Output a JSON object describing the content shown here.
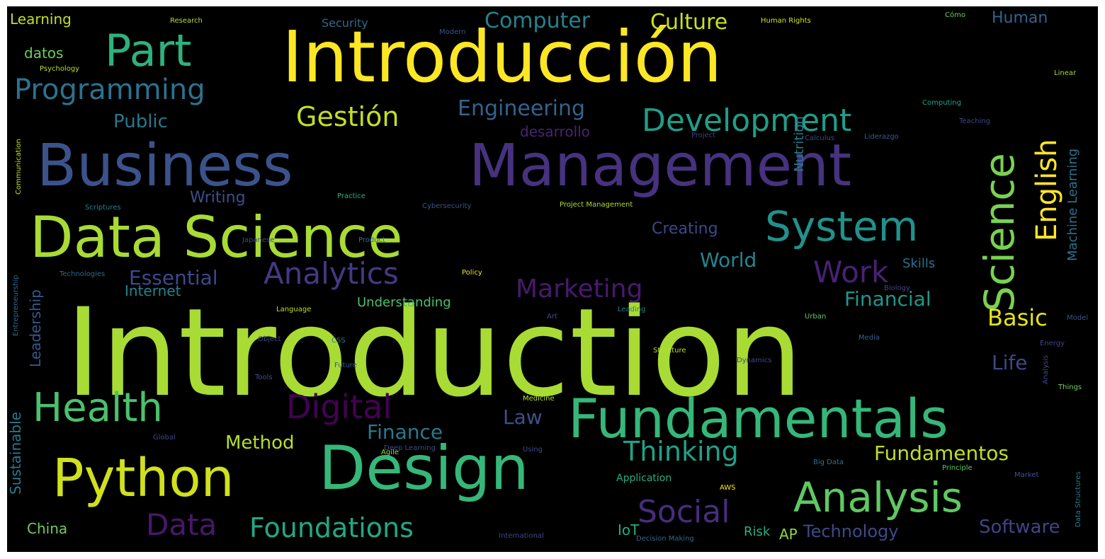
{
  "word_cloud": {
    "background": "#000000",
    "words": [
      {
        "text": "Introduction",
        "color": "#a8db34",
        "vertical": false
      },
      {
        "text": "Introducción",
        "color": "#fde725",
        "vertical": false
      },
      {
        "text": "Management",
        "color": "#46327e",
        "vertical": false
      },
      {
        "text": "Business",
        "color": "#3b528b",
        "vertical": false
      },
      {
        "text": "Data Science",
        "color": "#a8db34",
        "vertical": false
      },
      {
        "text": "Design",
        "color": "#35b779",
        "vertical": false
      },
      {
        "text": "Fundamentals",
        "color": "#35b779",
        "vertical": false
      },
      {
        "text": "Python",
        "color": "#d0e11c",
        "vertical": false
      },
      {
        "text": "Science",
        "color": "#7ad151",
        "vertical": true
      },
      {
        "text": "Part",
        "color": "#2db27d",
        "vertical": false
      },
      {
        "text": "Health",
        "color": "#4ac16d",
        "vertical": false
      },
      {
        "text": "Analysis",
        "color": "#5ec962",
        "vertical": false
      },
      {
        "text": "System",
        "color": "#21918c",
        "vertical": false
      },
      {
        "text": "Development",
        "color": "#1f9e89",
        "vertical": false
      },
      {
        "text": "English",
        "color": "#fde725",
        "vertical": true
      },
      {
        "text": "Programming",
        "color": "#2c728e",
        "vertical": false
      },
      {
        "text": "Digital",
        "color": "#440154",
        "vertical": false
      },
      {
        "text": "Social",
        "color": "#472d7b",
        "vertical": false
      },
      {
        "text": "Analytics",
        "color": "#443983",
        "vertical": false
      },
      {
        "text": "Work",
        "color": "#482173",
        "vertical": false
      },
      {
        "text": "Foundations",
        "color": "#22a884",
        "vertical": false
      },
      {
        "text": "Gestión",
        "color": "#c2df23",
        "vertical": false
      },
      {
        "text": "Data",
        "color": "#48186a",
        "vertical": false
      },
      {
        "text": "Thinking",
        "color": "#1fa188",
        "vertical": false
      },
      {
        "text": "Marketing",
        "color": "#481a6c",
        "vertical": false
      },
      {
        "text": "Engineering",
        "color": "#33638d",
        "vertical": false
      },
      {
        "text": "Fundamentos",
        "color": "#c2df23",
        "vertical": false
      },
      {
        "text": "Basic",
        "color": "#e5e419",
        "vertical": false
      },
      {
        "text": "Essential",
        "color": "#3e4989",
        "vertical": false
      },
      {
        "text": "Financial",
        "color": "#1f968b",
        "vertical": false
      },
      {
        "text": "Computer",
        "color": "#26828e",
        "vertical": false
      },
      {
        "text": "Culture",
        "color": "#c8e020",
        "vertical": false
      },
      {
        "text": "Finance",
        "color": "#2a788e",
        "vertical": false
      },
      {
        "text": "Method",
        "color": "#b5de2b",
        "vertical": false
      },
      {
        "text": "Software",
        "color": "#414487",
        "vertical": false
      },
      {
        "text": "Technology",
        "color": "#3e4a89",
        "vertical": false
      },
      {
        "text": "Law",
        "color": "#3b518b",
        "vertical": false
      },
      {
        "text": "World",
        "color": "#25848e",
        "vertical": false
      },
      {
        "text": "Life",
        "color": "#3f4788",
        "vertical": false
      },
      {
        "text": "Public",
        "color": "#2a768e",
        "vertical": false
      },
      {
        "text": "Creating",
        "color": "#404688",
        "vertical": false
      },
      {
        "text": "desarrollo",
        "color": "#482475",
        "vertical": false
      },
      {
        "text": "Human",
        "color": "#33638d",
        "vertical": false
      },
      {
        "text": "Internet",
        "color": "#26828e",
        "vertical": false
      },
      {
        "text": "Writing",
        "color": "#3d4e8a",
        "vertical": false
      },
      {
        "text": "Skills",
        "color": "#2d708e",
        "vertical": false
      },
      {
        "text": "Learning",
        "color": "#c2df23",
        "vertical": false
      },
      {
        "text": "datos",
        "color": "#6ccd5a",
        "vertical": false
      },
      {
        "text": "Security",
        "color": "#31688e",
        "vertical": false
      },
      {
        "text": "China",
        "color": "#6ece58",
        "vertical": false
      },
      {
        "text": "IoT",
        "color": "#25ac82",
        "vertical": false
      },
      {
        "text": "AP",
        "color": "#90d743",
        "vertical": false
      },
      {
        "text": "Risk",
        "color": "#29af7f",
        "vertical": false
      },
      {
        "text": "Understanding",
        "color": "#4ac16d",
        "vertical": false
      },
      {
        "text": "Application",
        "color": "#26ad81",
        "vertical": false
      },
      {
        "text": "Machine Learning",
        "color": "#2c728e",
        "vertical": true
      },
      {
        "text": "Nutrition",
        "color": "#287d8e",
        "vertical": true
      },
      {
        "text": "Leadership",
        "color": "#38588c",
        "vertical": true
      },
      {
        "text": "Sustainable",
        "color": "#2a788e",
        "vertical": true
      },
      {
        "text": "Research",
        "color": "#b5de2b",
        "vertical": false
      },
      {
        "text": "Modern",
        "color": "#3b528b",
        "vertical": false
      },
      {
        "text": "Human Rights",
        "color": "#d5e21a",
        "vertical": false
      },
      {
        "text": "Cómo",
        "color": "#6ece58",
        "vertical": false
      },
      {
        "text": "Psychology",
        "color": "#b5de2b",
        "vertical": false
      },
      {
        "text": "Linear",
        "color": "#a2da37",
        "vertical": false
      },
      {
        "text": "Computing",
        "color": "#20a486",
        "vertical": false
      },
      {
        "text": "Teaching",
        "color": "#414487",
        "vertical": false
      },
      {
        "text": "Calculus",
        "color": "#3e4989",
        "vertical": false
      },
      {
        "text": "Liderazgo",
        "color": "#375a8c",
        "vertical": false
      },
      {
        "text": "Project",
        "color": "#424086",
        "vertical": false
      },
      {
        "text": "Practice",
        "color": "#2db27d",
        "vertical": false
      },
      {
        "text": "Cybersecurity",
        "color": "#3b528b",
        "vertical": false
      },
      {
        "text": "Project Management",
        "color": "#addc30",
        "vertical": false
      },
      {
        "text": "Scriptures",
        "color": "#26828e",
        "vertical": false
      },
      {
        "text": "Product",
        "color": "#2d708e",
        "vertical": false
      },
      {
        "text": "Japanese",
        "color": "#3e4a89",
        "vertical": false
      },
      {
        "text": "Technologies",
        "color": "#31688e",
        "vertical": false
      },
      {
        "text": "Policy",
        "color": "#e7e419",
        "vertical": false
      },
      {
        "text": "Biology",
        "color": "#404688",
        "vertical": false
      },
      {
        "text": "Language",
        "color": "#bddf26",
        "vertical": false
      },
      {
        "text": "Leading",
        "color": "#287c8e",
        "vertical": false
      },
      {
        "text": "Art",
        "color": "#3d4d8a",
        "vertical": false
      },
      {
        "text": "Urban",
        "color": "#5ec962",
        "vertical": false
      },
      {
        "text": "Model",
        "color": "#3b528b",
        "vertical": false
      },
      {
        "text": "Energy",
        "color": "#414487",
        "vertical": false
      },
      {
        "text": "Object",
        "color": "#3f4889",
        "vertical": false
      },
      {
        "text": "CSS",
        "color": "#2a788e",
        "vertical": false
      },
      {
        "text": "Media",
        "color": "#355f8d",
        "vertical": false
      },
      {
        "text": "Structure",
        "color": "#b8de29",
        "vertical": false
      },
      {
        "text": "Future",
        "color": "#38598c",
        "vertical": false
      },
      {
        "text": "Dynamics",
        "color": "#3e4a89",
        "vertical": false
      },
      {
        "text": "Tools",
        "color": "#3b528b",
        "vertical": false
      },
      {
        "text": "Medicine",
        "color": "#b5de2b",
        "vertical": false
      },
      {
        "text": "Global",
        "color": "#414487",
        "vertical": false
      },
      {
        "text": "Deep Learning",
        "color": "#3d4e8a",
        "vertical": false
      },
      {
        "text": "Agile",
        "color": "#a2da37",
        "vertical": false
      },
      {
        "text": "Using",
        "color": "#3e4989",
        "vertical": false
      },
      {
        "text": "Big Data",
        "color": "#2a768e",
        "vertical": false
      },
      {
        "text": "Principle",
        "color": "#5cc863",
        "vertical": false
      },
      {
        "text": "Market",
        "color": "#3b528b",
        "vertical": false
      },
      {
        "text": "Things",
        "color": "#6ece58",
        "vertical": false
      },
      {
        "text": "International",
        "color": "#3e4a89",
        "vertical": false
      },
      {
        "text": "Decision Making",
        "color": "#31688e",
        "vertical": false
      },
      {
        "text": "AWS",
        "color": "#fde725",
        "vertical": false
      },
      {
        "text": "Communication",
        "color": "#c2df23",
        "vertical": true
      },
      {
        "text": "Entrepreneurship",
        "color": "#31688e",
        "vertical": true
      },
      {
        "text": "Analysis",
        "color": "#3e4989",
        "vertical": true
      },
      {
        "text": "Data Structures",
        "color": "#2a788e",
        "vertical": true
      }
    ]
  }
}
